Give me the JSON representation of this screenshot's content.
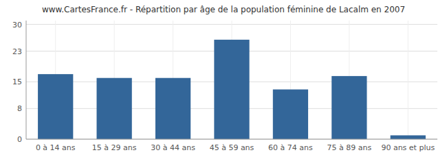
{
  "chart_data": {
    "type": "bar",
    "title": "www.CartesFrance.fr - Répartition par âge de la population féminine de Lacalm en 2007",
    "categories": [
      "0 à 14 ans",
      "15 à 29 ans",
      "30 à 44 ans",
      "45 à 59 ans",
      "60 à 74 ans",
      "75 à 89 ans",
      "90 ans et plus"
    ],
    "values": [
      17,
      16,
      16,
      26,
      13,
      16.5,
      1
    ],
    "color": "#336699",
    "ylim": [
      0,
      31
    ],
    "yticks": [
      0,
      8,
      15,
      23,
      30
    ],
    "grid": true
  }
}
